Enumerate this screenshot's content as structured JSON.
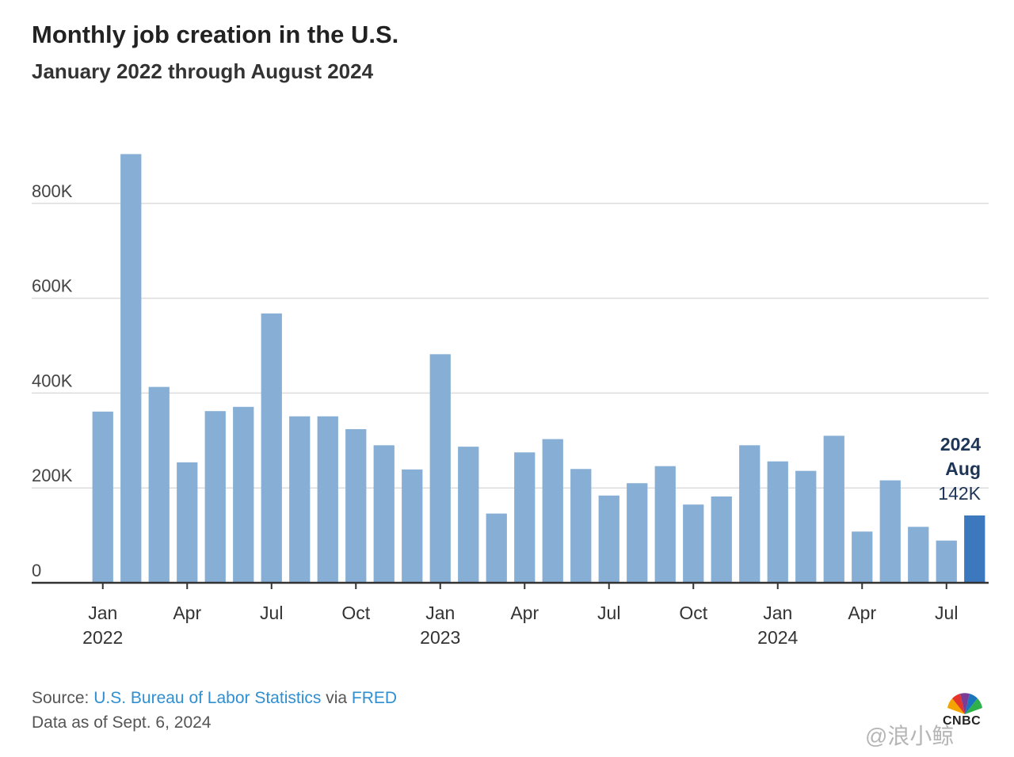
{
  "chart_data": {
    "type": "bar",
    "title": "Monthly job creation in the U.S.",
    "subtitle": "January 2022 through August 2024",
    "categories": [
      "Jan 2022",
      "Feb 2022",
      "Mar 2022",
      "Apr 2022",
      "May 2022",
      "Jun 2022",
      "Jul 2022",
      "Aug 2022",
      "Sep 2022",
      "Oct 2022",
      "Nov 2022",
      "Dec 2022",
      "Jan 2023",
      "Feb 2023",
      "Mar 2023",
      "Apr 2023",
      "May 2023",
      "Jun 2023",
      "Jul 2023",
      "Aug 2023",
      "Sep 2023",
      "Oct 2023",
      "Nov 2023",
      "Dec 2023",
      "Jan 2024",
      "Feb 2024",
      "Mar 2024",
      "Apr 2024",
      "May 2024",
      "Jun 2024",
      "Jul 2024",
      "Aug 2024"
    ],
    "values": [
      361,
      904,
      413,
      254,
      362,
      371,
      568,
      351,
      351,
      324,
      290,
      239,
      482,
      287,
      146,
      275,
      303,
      240,
      184,
      210,
      246,
      165,
      182,
      290,
      256,
      236,
      310,
      108,
      216,
      118,
      89,
      142
    ],
    "value_unit": "thousands",
    "ylim": [
      0,
      920
    ],
    "yticks": [
      0,
      200,
      400,
      600,
      800
    ],
    "ytick_labels": [
      "0",
      "200K",
      "400K",
      "600K",
      "800K"
    ],
    "xtick_labels": [
      {
        "index": 0,
        "label": "Jan",
        "year": "2022"
      },
      {
        "index": 3,
        "label": "Apr"
      },
      {
        "index": 6,
        "label": "Jul"
      },
      {
        "index": 9,
        "label": "Oct"
      },
      {
        "index": 12,
        "label": "Jan",
        "year": "2023"
      },
      {
        "index": 15,
        "label": "Apr"
      },
      {
        "index": 18,
        "label": "Jul"
      },
      {
        "index": 21,
        "label": "Oct"
      },
      {
        "index": 24,
        "label": "Jan",
        "year": "2024"
      },
      {
        "index": 27,
        "label": "Apr"
      },
      {
        "index": 30,
        "label": "Jul"
      }
    ],
    "grid": true,
    "highlight": {
      "index": 31,
      "year": "2024",
      "month": "Aug",
      "value_label": "142K"
    },
    "colors": {
      "bar": "#87afd6",
      "highlight": "#3b78be",
      "label_dark": "#1d3557",
      "grid": "#dcdcdc",
      "axis": "#333333"
    }
  },
  "footer": {
    "source_prefix": "Source: ",
    "source_link1": "U.S. Bureau of Labor Statistics",
    "source_mid": " via ",
    "source_link2": "FRED",
    "data_as_of": "Data as of Sept. 6, 2024"
  },
  "logo": {
    "text": "CNBC"
  },
  "watermark": "@浪小鲸"
}
